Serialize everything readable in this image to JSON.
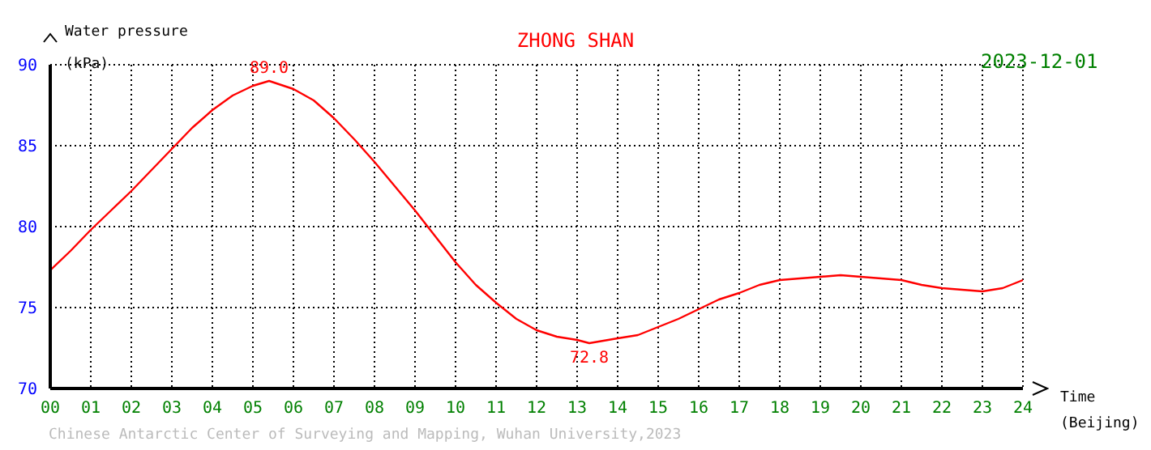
{
  "chart_data": {
    "type": "line",
    "title": "ZHONG SHAN",
    "subtitle": "2023-12-01",
    "xlabel": "Time (Beijing)",
    "ylabel": "Water pressure (kPa)",
    "x": [
      0,
      0.5,
      1,
      1.5,
      2,
      2.5,
      3,
      3.5,
      4,
      4.5,
      5,
      5.4,
      6,
      6.5,
      7,
      7.5,
      8,
      8.5,
      9,
      9.5,
      10,
      10.5,
      11,
      11.5,
      12,
      12.5,
      13,
      13.3,
      14,
      14.5,
      15,
      15.5,
      16,
      16.5,
      17,
      17.5,
      18,
      18.5,
      19,
      19.5,
      20,
      20.5,
      21,
      21.5,
      22,
      22.5,
      23,
      23.5,
      24
    ],
    "series": [
      {
        "color": "#ff0000",
        "values": [
          77.3,
          78.5,
          79.8,
          81.0,
          82.2,
          83.5,
          84.8,
          86.1,
          87.2,
          88.1,
          88.7,
          89.0,
          88.5,
          87.8,
          86.7,
          85.4,
          84.0,
          82.5,
          81.0,
          79.4,
          77.8,
          76.4,
          75.3,
          74.3,
          73.6,
          73.2,
          73.0,
          72.8,
          73.1,
          73.3,
          73.8,
          74.3,
          74.9,
          75.5,
          75.9,
          76.4,
          76.7,
          76.8,
          76.9,
          77.0,
          76.9,
          76.8,
          76.7,
          76.4,
          76.2,
          76.1,
          76.0,
          76.2,
          76.7
        ]
      }
    ],
    "xlim": [
      0,
      24
    ],
    "xticks": [
      {
        "value": 0,
        "label": "00"
      },
      {
        "value": 1,
        "label": "01"
      },
      {
        "value": 2,
        "label": "02"
      },
      {
        "value": 3,
        "label": "03"
      },
      {
        "value": 4,
        "label": "04"
      },
      {
        "value": 5,
        "label": "05"
      },
      {
        "value": 6,
        "label": "06"
      },
      {
        "value": 7,
        "label": "07"
      },
      {
        "value": 8,
        "label": "08"
      },
      {
        "value": 9,
        "label": "09"
      },
      10,
      11,
      12,
      13,
      14,
      15,
      16,
      17,
      18,
      19,
      20,
      21,
      22,
      23,
      24
    ],
    "ylim": [
      70,
      90
    ],
    "yticks": [
      70,
      75,
      80,
      85,
      90
    ],
    "grid": true,
    "marker": "none",
    "line_style": "solid",
    "annotations": [
      {
        "text": "89.0",
        "x": 5.4,
        "y": 89.0
      },
      {
        "text": "72.8",
        "x": 13.3,
        "y": 72.8
      },
      "Chinese Antarctic Center of Surveying and Mapping, Wuhan University,2023"
    ]
  }
}
